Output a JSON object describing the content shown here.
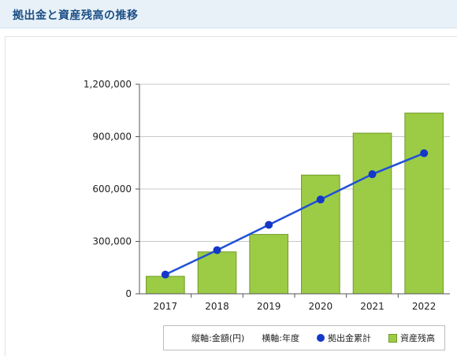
{
  "header": {
    "title": "拠出金と資産残高の推移"
  },
  "legend": {
    "vertical_axis": "縦軸:金額(円)",
    "horizontal_axis": "横軸:年度",
    "line_label": "拠出金累計",
    "bar_label": "資産残高"
  },
  "colors": {
    "bar_fill": "#9ccc45",
    "bar_stroke": "#6f9a25",
    "line": "#2050d8",
    "point": "#1438c8",
    "grid": "#c8c8c8",
    "axis": "#555555",
    "header_text": "#1b4f86"
  },
  "chart_data": {
    "type": "bar",
    "categories": [
      "2017",
      "2018",
      "2019",
      "2020",
      "2021",
      "2022"
    ],
    "series": [
      {
        "name": "資産残高",
        "type": "bar",
        "values": [
          100000,
          240000,
          340000,
          680000,
          920000,
          1035000
        ]
      },
      {
        "name": "拠出金累計",
        "type": "line",
        "values": [
          110000,
          250000,
          395000,
          540000,
          685000,
          805000
        ]
      }
    ],
    "y_ticks": [
      "0",
      "300,000",
      "600,000",
      "900,000",
      "1,200,000"
    ],
    "y_tick_values": [
      0,
      300000,
      600000,
      900000,
      1200000
    ],
    "ylim": [
      0,
      1200000
    ],
    "xlabel": "横軸:年度",
    "ylabel": "縦軸:金額(円)",
    "grid": true,
    "legend_position": "bottom-right"
  }
}
